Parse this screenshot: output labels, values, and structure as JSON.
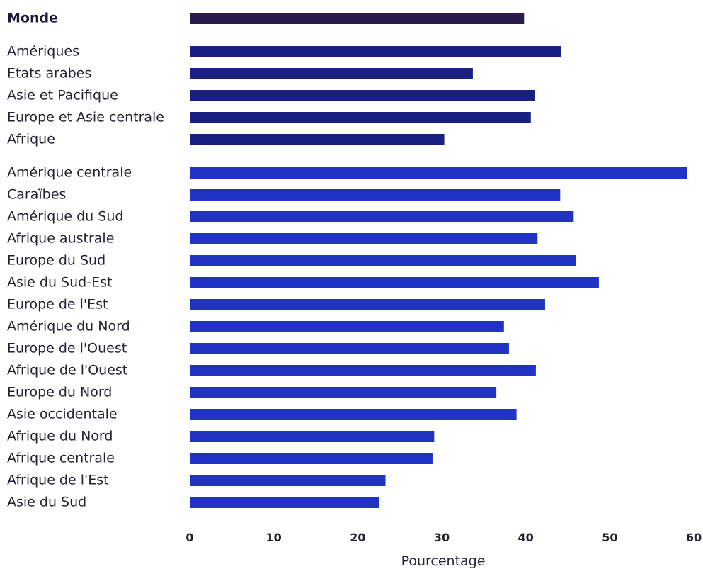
{
  "chart_data": {
    "type": "bar",
    "orientation": "horizontal",
    "title": "",
    "xlabel": "Pourcentage",
    "ylabel": "",
    "xlim": [
      0,
      60
    ],
    "x_ticks": [
      0,
      10,
      20,
      30,
      40,
      50,
      60
    ],
    "grid": false,
    "legend": "none",
    "groups": [
      {
        "color": "#2a1b4e",
        "bold": true,
        "bars": [
          {
            "label": "Monde",
            "value": 39.8
          }
        ]
      },
      {
        "color": "#19207f",
        "bold": false,
        "bars": [
          {
            "label": "Amériques",
            "value": 44.2
          },
          {
            "label": "Etats arabes",
            "value": 33.7
          },
          {
            "label": "Asie et Pacifique",
            "value": 41.1
          },
          {
            "label": "Europe et Asie centrale",
            "value": 40.6
          },
          {
            "label": "Afrique",
            "value": 30.3
          }
        ]
      },
      {
        "color": "#2233c4",
        "bold": false,
        "bars": [
          {
            "label": "Amérique centrale",
            "value": 59.2
          },
          {
            "label": "Caraïbes",
            "value": 44.1
          },
          {
            "label": "Amérique du Sud",
            "value": 45.7
          },
          {
            "label": "Afrique australe",
            "value": 41.4
          },
          {
            "label": "Europe du Sud",
            "value": 46.0
          },
          {
            "label": "Asie du Sud-Est",
            "value": 48.7
          },
          {
            "label": "Europe de l'Est",
            "value": 42.3
          },
          {
            "label": "Amérique du Nord",
            "value": 37.4
          },
          {
            "label": "Europe de l'Ouest",
            "value": 38.0
          },
          {
            "label": "Afrique de l'Ouest",
            "value": 41.2
          },
          {
            "label": "Europe du Nord",
            "value": 36.5
          },
          {
            "label": "Asie occidentale",
            "value": 38.9
          },
          {
            "label": "Afrique du Nord",
            "value": 29.1
          },
          {
            "label": "Afrique centrale",
            "value": 28.9
          },
          {
            "label": "Afrique de l'Est",
            "value": 23.3
          },
          {
            "label": "Asie du Sud",
            "value": 22.5
          }
        ]
      }
    ]
  }
}
